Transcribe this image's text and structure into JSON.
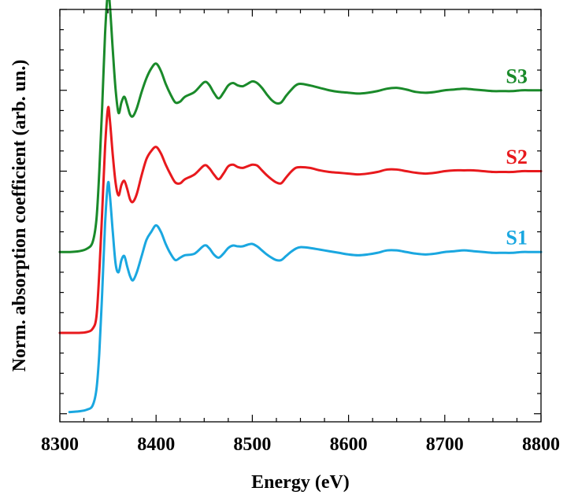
{
  "chart_data": {
    "type": "line",
    "title": "",
    "xlabel": "Energy (eV)",
    "ylabel": "Norm. absorption coefficient (arb. un.)",
    "xlim": [
      8300,
      8800
    ],
    "ylim": [
      -0.1,
      5.0
    ],
    "xticks": [
      "8300",
      "8400",
      "8500",
      "8600",
      "8700",
      "8800"
    ],
    "show_y_tick_labels": false,
    "grid": false,
    "series": [
      {
        "name": "S1",
        "color": "#1aa7e0",
        "offset": 0,
        "x": [
          8310,
          8320,
          8328,
          8334,
          8338,
          8341,
          8344,
          8347,
          8350,
          8352,
          8355,
          8358,
          8361,
          8364,
          8367,
          8370,
          8373,
          8376,
          8380,
          8385,
          8390,
          8395,
          8400,
          8405,
          8410,
          8415,
          8420,
          8425,
          8430,
          8440,
          8450,
          8455,
          8460,
          8465,
          8470,
          8475,
          8480,
          8485,
          8490,
          8495,
          8500,
          8505,
          8510,
          8515,
          8520,
          8525,
          8530,
          8535,
          8540,
          8545,
          8550,
          8560,
          8570,
          8580,
          8590,
          8600,
          8610,
          8620,
          8630,
          8640,
          8650,
          8660,
          8670,
          8680,
          8690,
          8700,
          8710,
          8720,
          8730,
          8740,
          8750,
          8760,
          8770,
          8780,
          8790,
          8800
        ],
        "y": [
          0.02,
          0.03,
          0.05,
          0.1,
          0.3,
          0.75,
          1.5,
          2.35,
          2.85,
          2.7,
          2.25,
          1.85,
          1.75,
          1.9,
          1.95,
          1.82,
          1.7,
          1.65,
          1.75,
          1.95,
          2.15,
          2.25,
          2.33,
          2.25,
          2.1,
          1.98,
          1.9,
          1.93,
          1.96,
          1.98,
          2.08,
          2.05,
          1.97,
          1.93,
          1.98,
          2.05,
          2.08,
          2.07,
          2.07,
          2.09,
          2.1,
          2.07,
          2.02,
          1.97,
          1.93,
          1.9,
          1.9,
          1.95,
          2.0,
          2.04,
          2.06,
          2.05,
          2.03,
          2.01,
          1.99,
          1.97,
          1.96,
          1.97,
          1.99,
          2.02,
          2.02,
          2.0,
          1.98,
          1.97,
          1.98,
          2.0,
          2.01,
          2.02,
          2.01,
          2.0,
          1.99,
          1.99,
          1.99,
          2.0,
          2.0,
          2.0
        ]
      },
      {
        "name": "S2",
        "color": "#e8191d",
        "offset": 1,
        "x": [
          8300,
          8310,
          8320,
          8328,
          8334,
          8338,
          8341,
          8344,
          8347,
          8350,
          8352,
          8355,
          8358,
          8361,
          8364,
          8367,
          8370,
          8373,
          8376,
          8380,
          8385,
          8390,
          8395,
          8400,
          8405,
          8410,
          8415,
          8420,
          8425,
          8430,
          8440,
          8450,
          8455,
          8460,
          8465,
          8470,
          8475,
          8480,
          8485,
          8490,
          8495,
          8500,
          8505,
          8510,
          8515,
          8520,
          8525,
          8530,
          8535,
          8540,
          8545,
          8550,
          8560,
          8570,
          8580,
          8590,
          8600,
          8610,
          8620,
          8630,
          8640,
          8650,
          8660,
          8670,
          8680,
          8690,
          8700,
          8710,
          8720,
          8730,
          8740,
          8750,
          8760,
          8770,
          8780,
          8790,
          8800
        ],
        "y": [
          0.0,
          0.0,
          0.0,
          0.01,
          0.05,
          0.2,
          0.75,
          1.5,
          2.3,
          2.78,
          2.63,
          2.2,
          1.85,
          1.7,
          1.83,
          1.88,
          1.78,
          1.65,
          1.62,
          1.72,
          1.95,
          2.15,
          2.25,
          2.3,
          2.22,
          2.08,
          1.96,
          1.86,
          1.85,
          1.9,
          1.96,
          2.07,
          2.04,
          1.96,
          1.9,
          1.97,
          2.06,
          2.08,
          2.05,
          2.04,
          2.06,
          2.08,
          2.07,
          2.01,
          1.95,
          1.9,
          1.86,
          1.85,
          1.92,
          1.99,
          2.04,
          2.05,
          2.04,
          2.01,
          1.99,
          1.98,
          1.97,
          1.96,
          1.97,
          1.99,
          2.02,
          2.02,
          2.0,
          1.98,
          1.97,
          1.98,
          2.0,
          2.01,
          2.01,
          2.01,
          2.0,
          1.99,
          1.99,
          1.99,
          2.0,
          2.0,
          2.0
        ]
      },
      {
        "name": "S3",
        "color": "#1a8a2a",
        "offset": 2,
        "x": [
          8300,
          8310,
          8320,
          8328,
          8334,
          8338,
          8341,
          8344,
          8347,
          8350,
          8352,
          8355,
          8358,
          8361,
          8364,
          8367,
          8370,
          8373,
          8376,
          8380,
          8385,
          8390,
          8395,
          8400,
          8405,
          8410,
          8415,
          8420,
          8425,
          8430,
          8440,
          8450,
          8455,
          8460,
          8465,
          8470,
          8475,
          8480,
          8485,
          8490,
          8495,
          8500,
          8505,
          8510,
          8515,
          8520,
          8525,
          8530,
          8535,
          8540,
          8545,
          8550,
          8560,
          8570,
          8580,
          8590,
          8600,
          8610,
          8620,
          8630,
          8640,
          8650,
          8660,
          8670,
          8680,
          8690,
          8700,
          8710,
          8720,
          8730,
          8740,
          8750,
          8760,
          8770,
          8780,
          8790,
          8800
        ],
        "y": [
          0.0,
          0.0,
          0.01,
          0.04,
          0.12,
          0.4,
          1.0,
          1.8,
          2.7,
          3.22,
          3.05,
          2.5,
          2.0,
          1.72,
          1.85,
          1.92,
          1.82,
          1.7,
          1.68,
          1.78,
          1.98,
          2.15,
          2.27,
          2.33,
          2.24,
          2.08,
          1.95,
          1.85,
          1.86,
          1.92,
          1.98,
          2.1,
          2.07,
          1.97,
          1.9,
          1.97,
          2.06,
          2.09,
          2.06,
          2.05,
          2.08,
          2.11,
          2.09,
          2.03,
          1.95,
          1.88,
          1.84,
          1.85,
          1.93,
          2.0,
          2.06,
          2.08,
          2.06,
          2.03,
          2.0,
          1.98,
          1.97,
          1.96,
          1.97,
          1.99,
          2.02,
          2.03,
          2.01,
          1.98,
          1.97,
          1.98,
          2.0,
          2.01,
          2.02,
          2.01,
          2.0,
          1.99,
          1.99,
          1.99,
          2.0,
          2.0,
          2.0
        ]
      }
    ]
  }
}
